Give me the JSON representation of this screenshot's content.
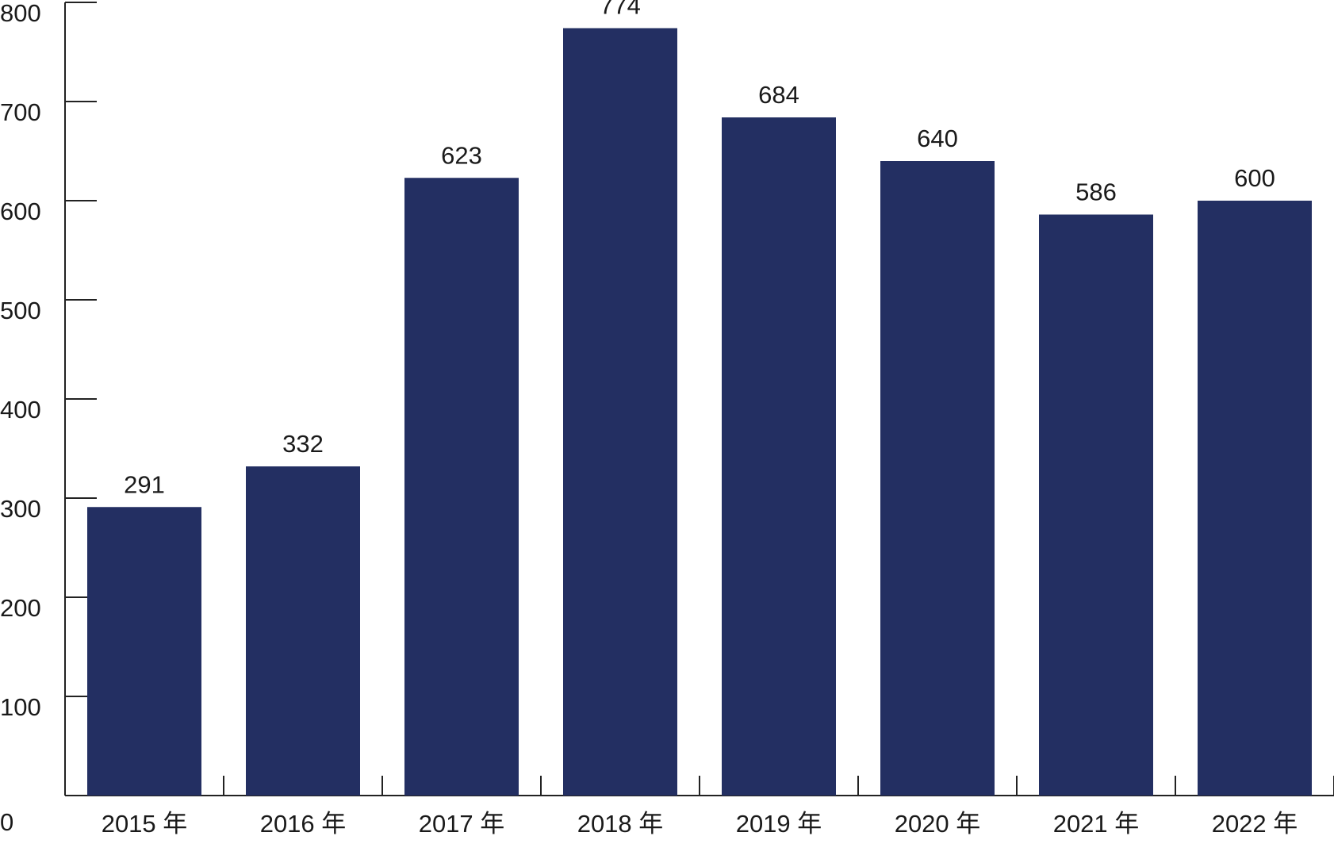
{
  "chart_data": {
    "type": "bar",
    "title": "",
    "xlabel": "",
    "ylabel": "",
    "categories": [
      "2015 年",
      "2016 年",
      "2017 年",
      "2018 年",
      "2019 年",
      "2020 年",
      "2021 年",
      "2022 年"
    ],
    "values": [
      291,
      332,
      623,
      774,
      684,
      640,
      586,
      600
    ],
    "value_labels": [
      "291",
      "332",
      "623",
      "774",
      "684",
      "640",
      "586",
      "600"
    ],
    "ylim": [
      0,
      800
    ],
    "yticks": [
      0,
      100,
      200,
      300,
      400,
      500,
      600,
      700,
      800
    ],
    "ytick_labels": [
      "0",
      "100",
      "200",
      "300",
      "400",
      "500",
      "600",
      "700",
      "800"
    ],
    "grid": false,
    "legend": "none",
    "bar_color": "#232f62"
  }
}
